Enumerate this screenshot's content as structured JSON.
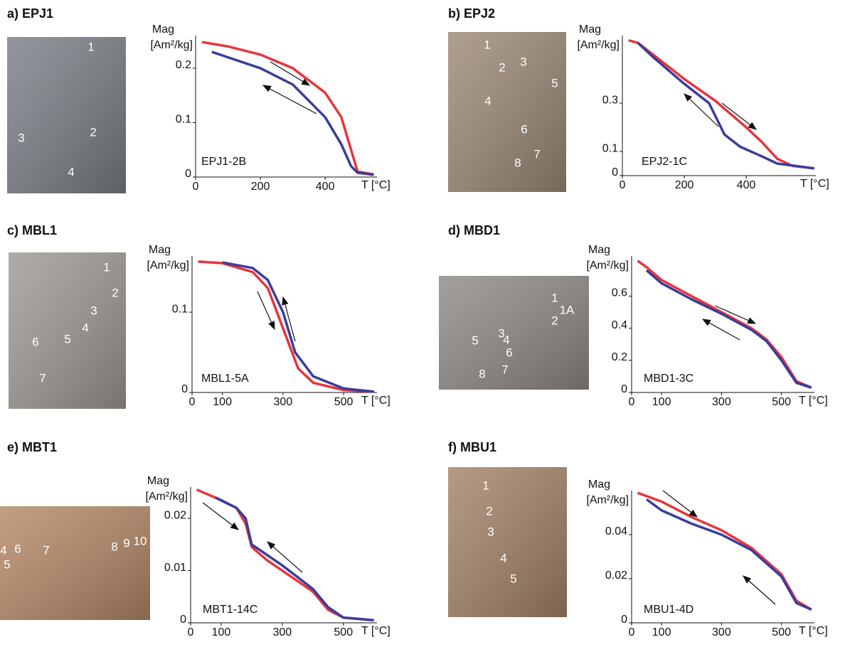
{
  "chart_data": [
    {
      "type": "line",
      "panel_title": "a) EPJ1",
      "photo_labels": [
        "1",
        "2",
        "3",
        "4"
      ],
      "ylabel": "Mag",
      "yunit": "[Am²/kg]",
      "xlabel": "T [°C]",
      "annotation": "EPJ1-2B",
      "xlim": [
        0,
        560
      ],
      "xticks": [
        0,
        200,
        400
      ],
      "ylim": [
        0,
        0.26
      ],
      "yticks": [
        0,
        0.1,
        0.2
      ],
      "series": [
        {
          "color": "#e8343c",
          "x": [
            20,
            100,
            200,
            300,
            400,
            450,
            480,
            500,
            550
          ],
          "values": [
            0.248,
            0.24,
            0.225,
            0.2,
            0.155,
            0.11,
            0.05,
            0.01,
            0.005
          ]
        },
        {
          "color": "#3a3d9c",
          "x": [
            50,
            100,
            200,
            300,
            400,
            450,
            480,
            500,
            550
          ],
          "values": [
            0.23,
            0.22,
            0.2,
            0.17,
            0.11,
            0.06,
            0.02,
            0.008,
            0.004
          ]
        }
      ]
    },
    {
      "type": "line",
      "panel_title": "b) EPJ2",
      "photo_labels": [
        "1",
        "2",
        "3",
        "4",
        "5",
        "6",
        "7",
        "8"
      ],
      "ylabel": "Mag",
      "yunit": "[Am²/kg]",
      "xlabel": "T [°C]",
      "annotation": "EPJ2-1C",
      "xlim": [
        0,
        625
      ],
      "xticks": [
        0,
        200,
        400
      ],
      "ylim": [
        0,
        0.58
      ],
      "yticks": [
        0,
        0.1,
        0.3
      ],
      "series": [
        {
          "color": "#e8343c",
          "x": [
            20,
            50,
            100,
            200,
            300,
            400,
            450,
            500,
            550,
            620
          ],
          "values": [
            0.56,
            0.55,
            0.5,
            0.4,
            0.31,
            0.2,
            0.14,
            0.07,
            0.04,
            0.03
          ]
        },
        {
          "color": "#3a3d9c",
          "x": [
            50,
            100,
            200,
            280,
            330,
            380,
            450,
            500,
            620
          ],
          "values": [
            0.55,
            0.49,
            0.38,
            0.3,
            0.17,
            0.12,
            0.08,
            0.05,
            0.03
          ]
        }
      ]
    },
    {
      "type": "line",
      "panel_title": "c) MBL1",
      "photo_labels": [
        "1",
        "2",
        "3",
        "4",
        "5",
        "6",
        "7"
      ],
      "ylabel": "Mag",
      "yunit": "[Am²/kg]",
      "xlabel": "T [°C]",
      "annotation": "MBL1-5A",
      "xlim": [
        0,
        610
      ],
      "xticks": [
        0,
        100,
        300,
        500
      ],
      "ylim": [
        0,
        0.17
      ],
      "yticks": [
        0,
        0.1
      ],
      "series": [
        {
          "color": "#e8343c",
          "x": [
            20,
            100,
            200,
            250,
            300,
            350,
            400,
            500,
            600
          ],
          "values": [
            0.163,
            0.161,
            0.15,
            0.13,
            0.08,
            0.03,
            0.012,
            0.003,
            0.001
          ]
        },
        {
          "color": "#3a3d9c",
          "x": [
            100,
            200,
            250,
            300,
            340,
            400,
            500,
            600
          ],
          "values": [
            0.162,
            0.155,
            0.14,
            0.1,
            0.05,
            0.02,
            0.005,
            0.001
          ]
        }
      ]
    },
    {
      "type": "line",
      "panel_title": "d) MBD1",
      "photo_labels": [
        "1",
        "1A",
        "2",
        "3",
        "4",
        "5",
        "6",
        "7",
        "8"
      ],
      "ylabel": "Mag",
      "yunit": "[Am²/kg]",
      "xlabel": "T [°C]",
      "annotation": "MBD1-3C",
      "xlim": [
        0,
        610
      ],
      "xticks": [
        0,
        100,
        300,
        500
      ],
      "ylim": [
        0,
        0.85
      ],
      "yticks": [
        0,
        0.2,
        0.4,
        0.6
      ],
      "series": [
        {
          "color": "#e8343c",
          "x": [
            20,
            50,
            100,
            200,
            300,
            400,
            450,
            500,
            550,
            600
          ],
          "values": [
            0.82,
            0.78,
            0.7,
            0.6,
            0.5,
            0.4,
            0.33,
            0.22,
            0.07,
            0.03
          ]
        },
        {
          "color": "#3a3d9c",
          "x": [
            50,
            100,
            200,
            300,
            400,
            450,
            500,
            550,
            600
          ],
          "values": [
            0.76,
            0.68,
            0.58,
            0.49,
            0.39,
            0.32,
            0.2,
            0.06,
            0.03
          ]
        }
      ]
    },
    {
      "type": "line",
      "panel_title": "e) MBT1",
      "photo_labels": [
        "4",
        "5",
        "6",
        "7",
        "8",
        "9",
        "10"
      ],
      "ylabel": "Mag",
      "yunit": "[Am²/kg]",
      "xlabel": "T [°C]",
      "annotation": "MBT1-14C",
      "xlim": [
        0,
        610
      ],
      "xticks": [
        0,
        100,
        300,
        500
      ],
      "ylim": [
        0,
        0.026
      ],
      "yticks": [
        0,
        0.01,
        0.02
      ],
      "series": [
        {
          "color": "#e8343c",
          "x": [
            20,
            100,
            150,
            180,
            200,
            250,
            300,
            400,
            450,
            500,
            600
          ],
          "values": [
            0.0255,
            0.0235,
            0.022,
            0.019,
            0.0145,
            0.012,
            0.01,
            0.006,
            0.0025,
            0.001,
            0.0005
          ]
        },
        {
          "color": "#3a3d9c",
          "x": [
            80,
            150,
            180,
            200,
            250,
            300,
            400,
            450,
            500,
            600
          ],
          "values": [
            0.024,
            0.022,
            0.02,
            0.015,
            0.013,
            0.011,
            0.0065,
            0.003,
            0.001,
            0.0005
          ]
        }
      ]
    },
    {
      "type": "line",
      "panel_title": "f) MBU1",
      "photo_labels": [
        "1",
        "2",
        "3",
        "4",
        "5"
      ],
      "ylabel": "Mag",
      "yunit": "[Am²/kg]",
      "xlabel": "T [°C]",
      "annotation": "MBU1-4D",
      "xlim": [
        0,
        610
      ],
      "xticks": [
        0,
        100,
        300,
        500
      ],
      "ylim": [
        0,
        0.06
      ],
      "yticks": [
        0,
        0.02,
        0.04
      ],
      "series": [
        {
          "color": "#e8343c",
          "x": [
            20,
            100,
            200,
            300,
            400,
            500,
            550,
            600
          ],
          "values": [
            0.059,
            0.055,
            0.048,
            0.042,
            0.034,
            0.022,
            0.01,
            0.006
          ]
        },
        {
          "color": "#3a3d9c",
          "x": [
            50,
            100,
            200,
            300,
            400,
            500,
            550,
            600
          ],
          "values": [
            0.056,
            0.051,
            0.045,
            0.04,
            0.033,
            0.021,
            0.009,
            0.006
          ]
        }
      ]
    }
  ]
}
